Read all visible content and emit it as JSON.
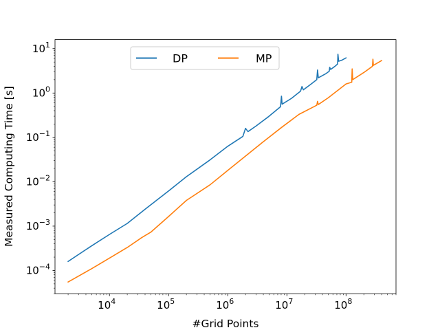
{
  "chart_data": {
    "type": "line",
    "title": "",
    "xlabel": "#Grid Points",
    "ylabel": "Measured Computing Time [s]",
    "xscale": "log",
    "yscale": "log",
    "xlim": [
      1200.0,
      700000000.0
    ],
    "ylim": [
      3e-05,
      16.0
    ],
    "grid": false,
    "legend": {
      "position": "top-center",
      "columns": 2
    },
    "x_ticks": [
      {
        "base": "10",
        "exp": "4",
        "value": 10000.0
      },
      {
        "base": "10",
        "exp": "5",
        "value": 100000.0
      },
      {
        "base": "10",
        "exp": "6",
        "value": 1000000.0
      },
      {
        "base": "10",
        "exp": "7",
        "value": 10000000.0
      },
      {
        "base": "10",
        "exp": "8",
        "value": 100000000.0
      }
    ],
    "y_ticks": [
      {
        "base": "10",
        "exp": "−4",
        "value": 0.0001
      },
      {
        "base": "10",
        "exp": "−3",
        "value": 0.001
      },
      {
        "base": "10",
        "exp": "−2",
        "value": 0.01
      },
      {
        "base": "10",
        "exp": "−1",
        "value": 0.1
      },
      {
        "base": "10",
        "exp": "0",
        "value": 1.0
      },
      {
        "base": "10",
        "exp": "1",
        "value": 10.0
      }
    ],
    "series": [
      {
        "name": "DP",
        "color": "#1f77b4",
        "x": [
          2000.0,
          5000.0,
          10000.0,
          20000.0,
          40000.0,
          100000.0,
          200000.0,
          500000.0,
          1000000.0,
          1800000.0,
          2000000.0,
          2200000.0,
          3000000.0,
          5000000.0,
          7800000.0,
          8100000.0,
          8300000.0,
          12000000.0,
          17000000.0,
          18000000.0,
          19000000.0,
          25000000.0,
          32000000.0,
          33000000.0,
          34000000.0,
          45000000.0,
          52000000.0,
          53000000.0,
          55000000.0,
          65000000.0,
          72000000.0,
          73000000.0,
          75000000.0,
          85000000.0,
          100000000.0
        ],
        "values": [
          0.00016,
          0.00036,
          0.00065,
          0.00115,
          0.0024,
          0.0062,
          0.013,
          0.031,
          0.063,
          0.105,
          0.16,
          0.135,
          0.18,
          0.3,
          0.49,
          0.85,
          0.56,
          0.76,
          1.1,
          1.4,
          1.18,
          1.55,
          2.0,
          3.3,
          2.2,
          2.7,
          3.1,
          3.8,
          3.4,
          4.0,
          4.5,
          7.5,
          5.2,
          5.5,
          6.2
        ]
      },
      {
        "name": "MP",
        "color": "#ff7f0e",
        "x": [
          2000.0,
          5000.0,
          10000.0,
          20000.0,
          35000.0,
          50000.0,
          100000.0,
          200000.0,
          500000.0,
          1000000.0,
          2000000.0,
          4000000.0,
          8000000.0,
          16000000.0,
          32000000.0,
          33000000.0,
          34000000.0,
          50000000.0,
          100000000.0,
          125000000.0,
          127000000.0,
          130000000.0,
          200000000.0,
          280000000.0,
          285000000.0,
          290000000.0,
          400000000.0
        ],
        "values": [
          5.5e-05,
          0.00011,
          0.00019,
          0.00033,
          0.00055,
          0.00073,
          0.00165,
          0.0038,
          0.0085,
          0.018,
          0.038,
          0.08,
          0.165,
          0.33,
          0.53,
          0.65,
          0.55,
          0.78,
          1.6,
          1.75,
          3.5,
          2.0,
          2.9,
          4.0,
          5.8,
          4.2,
          5.4
        ]
      }
    ]
  }
}
